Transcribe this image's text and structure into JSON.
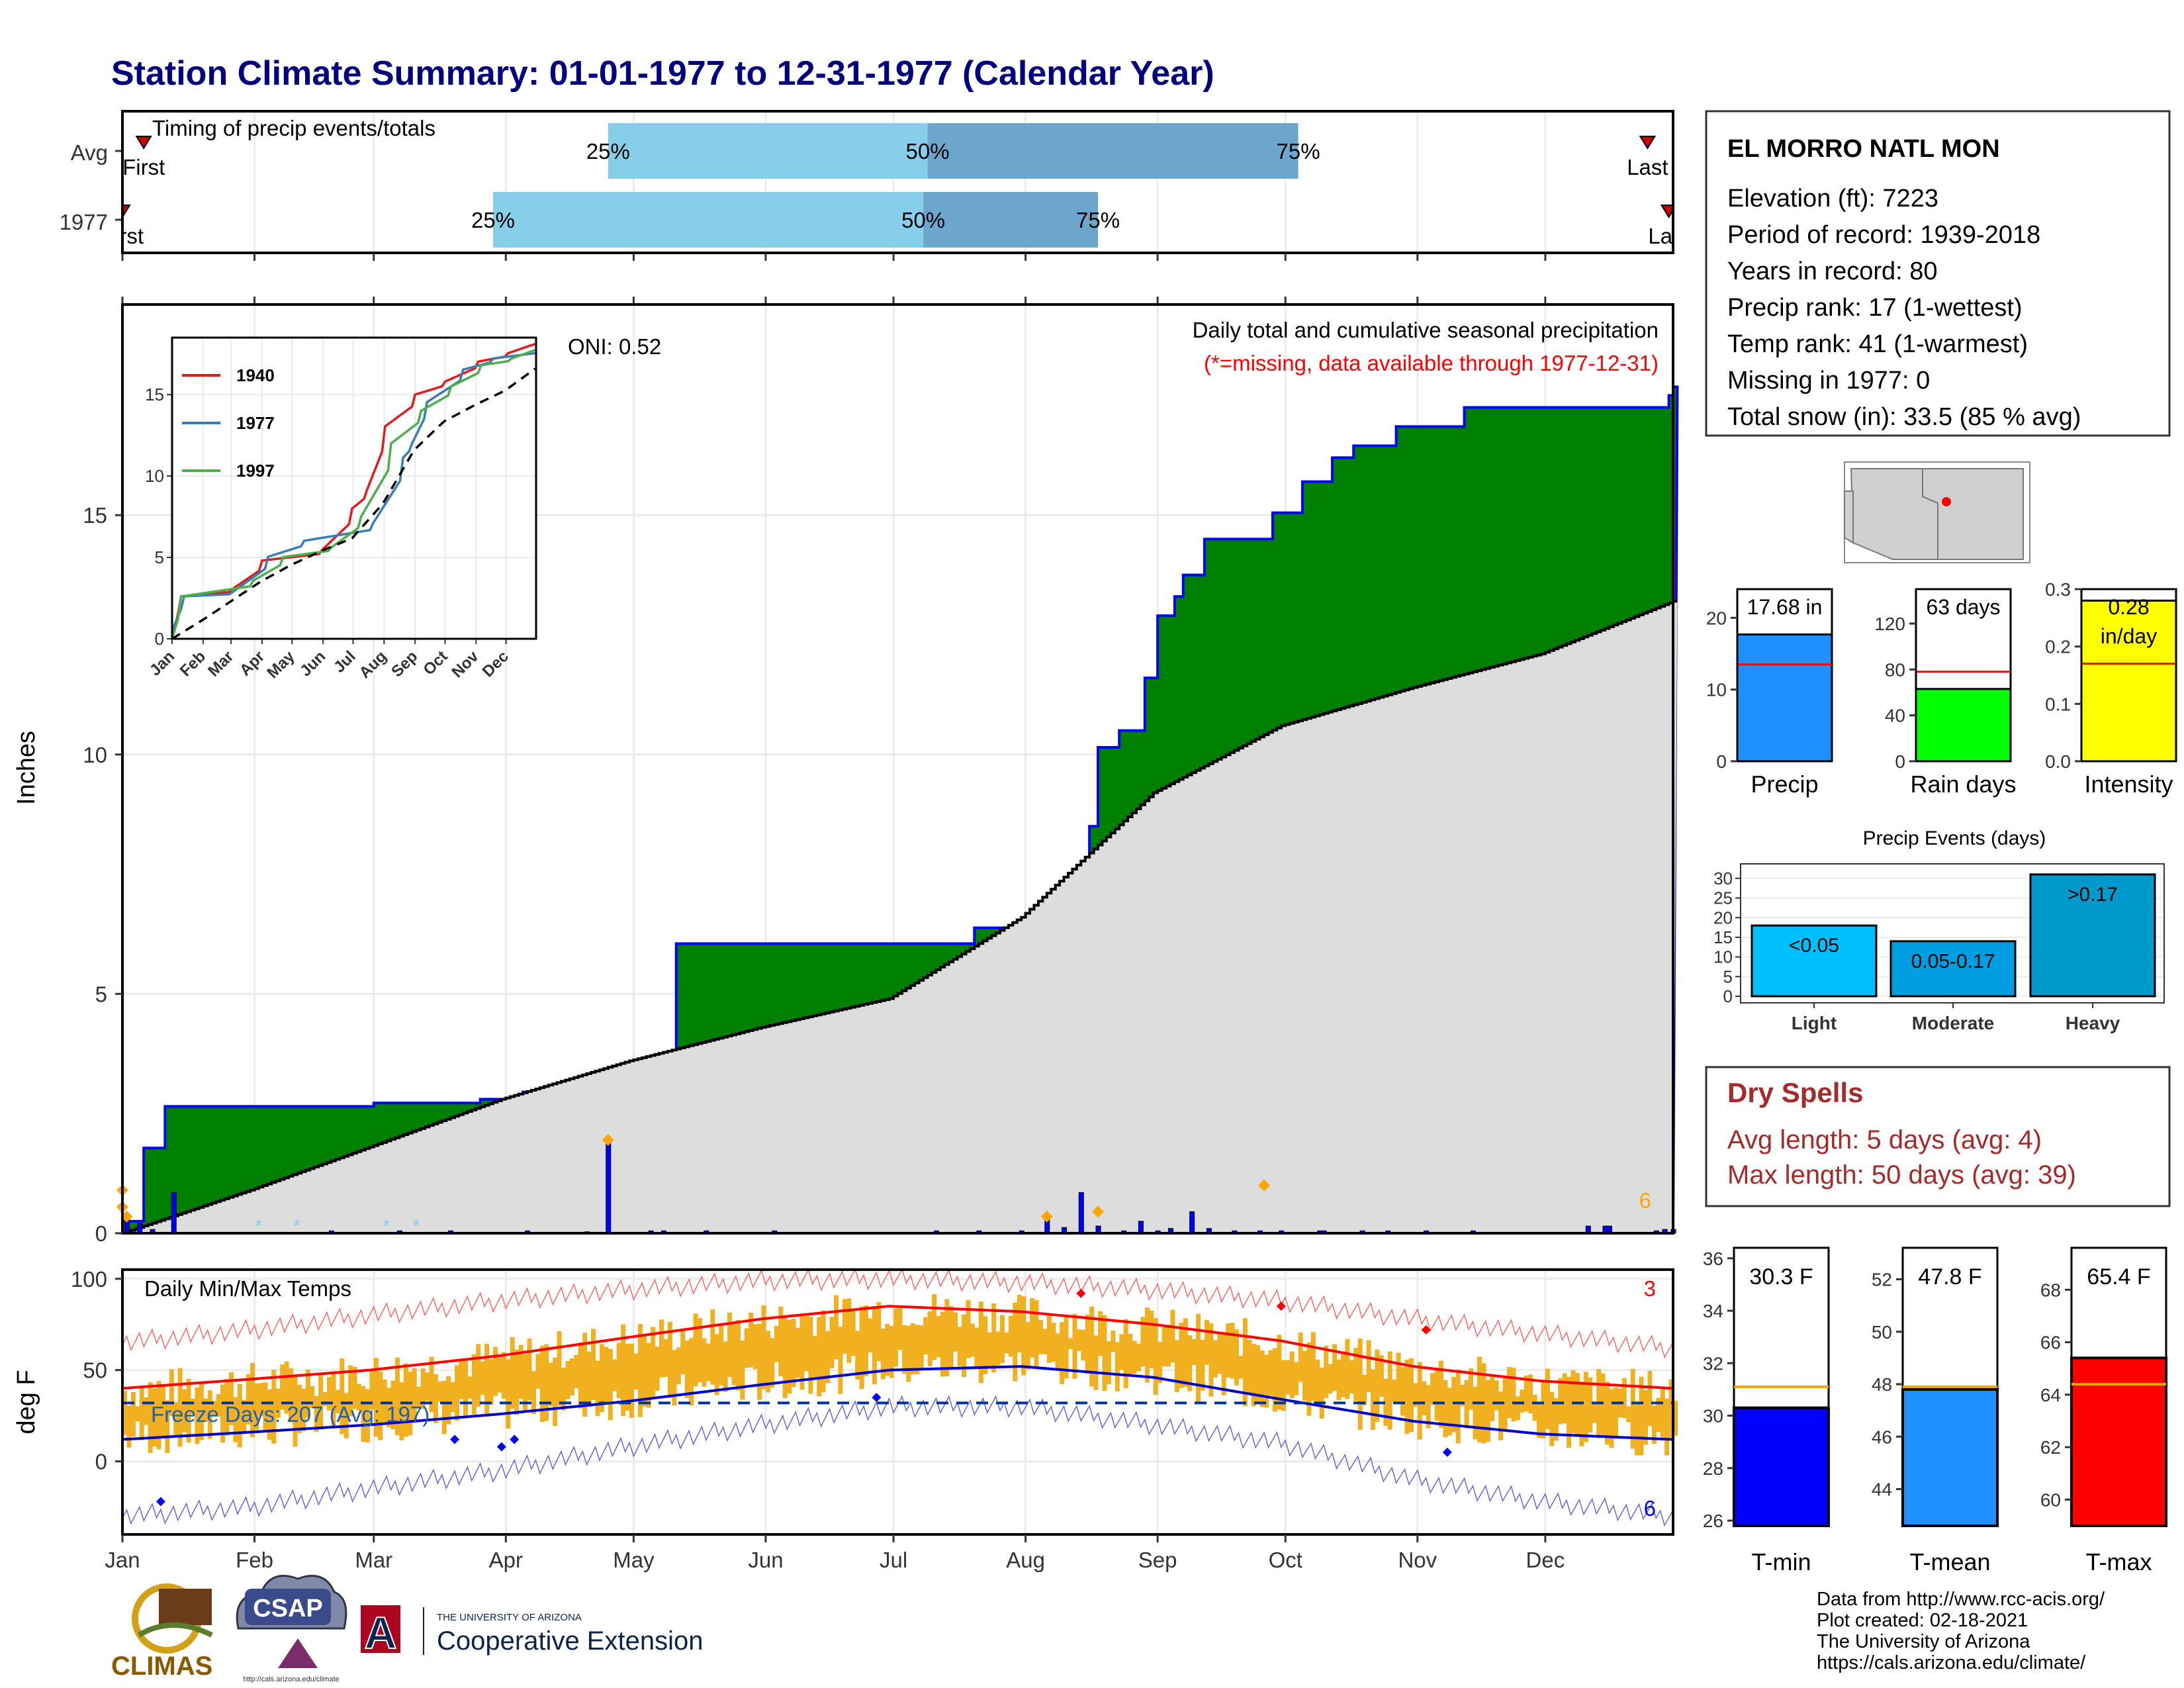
{
  "page": {
    "title": "Station Climate Summary: 01-01-1977 to 12-31-1977 (Calendar Year)"
  },
  "timing": {
    "label": "Timing of precip events/totals",
    "rows": [
      {
        "name": "Avg",
        "first_label": "First",
        "last_label": "Last",
        "first_day": 6,
        "last_day": 359,
        "p25": 115,
        "p50": 190,
        "p75": 277,
        "lbl25": "25%",
        "lbl50": "50%",
        "lbl75": "75%"
      },
      {
        "name": "1977",
        "first_label": "First",
        "last_label": "Last",
        "first_day": 1,
        "last_day": 364,
        "p25": 88,
        "p50": 189,
        "p75": 230,
        "lbl25": "25%",
        "lbl50": "50%",
        "lbl75": "75%"
      }
    ],
    "colors": {
      "light": "#87ceeb",
      "dark": "#6ca6cd",
      "marker": "#cc0000"
    }
  },
  "precip_panel": {
    "ylabel": "Inches",
    "header": "Daily total and cumulative seasonal precipitation",
    "subheader": "(*=missing, data available through 1977-12-31)",
    "oni": "ONI: 0.52",
    "count_label": "6",
    "ylim": [
      0,
      19.4
    ],
    "yticks": [
      0,
      5,
      10,
      15
    ],
    "colors": {
      "cum": "#008000",
      "cum_line": "#0000ff",
      "avg_fill": "#dddddd",
      "avg_line": "#000000",
      "bars": "#0000ff",
      "record": "#ffa500"
    }
  },
  "inset": {
    "ylim": [
      0,
      18.5
    ],
    "yticks": [
      0,
      5,
      10,
      15
    ],
    "months": [
      "Jan",
      "Feb",
      "Mar",
      "Apr",
      "May",
      "Jun",
      "Jul",
      "Aug",
      "Sep",
      "Oct",
      "Nov",
      "Dec"
    ],
    "legend": [
      {
        "name": "1940",
        "color": "#e41a1c"
      },
      {
        "name": "1977",
        "color": "#377eb8"
      },
      {
        "name": "1997",
        "color": "#4daf4a"
      }
    ]
  },
  "temp_panel": {
    "ylabel": "deg F",
    "label": "Daily Min/Max Temps",
    "freeze": "Freeze Days: 207 (Avg: 197)",
    "count_high": "3",
    "count_low": "6",
    "ylim": [
      -40,
      105
    ],
    "yticks": [
      0,
      50,
      100
    ],
    "colors": {
      "bars": "#f0b020",
      "avg_max": "#ff0000",
      "avg_min": "#0000cc",
      "rec_max": "#ff6666",
      "rec_min": "#6666dd",
      "freeze": "#003399"
    }
  },
  "months": [
    "Jan",
    "Feb",
    "Mar",
    "Apr",
    "May",
    "Jun",
    "Jul",
    "Aug",
    "Sep",
    "Oct",
    "Nov",
    "Dec"
  ],
  "station": {
    "name": "EL MORRO NATL MON",
    "lines": [
      "Elevation (ft): 7223",
      "Period of record: 1939-2018",
      "Years in record: 80",
      "Precip rank: 17 (1-wettest)",
      "Temp rank: 41 (1-warmest)",
      "Missing in 1977: 0",
      "Total snow (in): 33.5 (85 % avg)"
    ]
  },
  "mini_bars": [
    {
      "name": "Precip",
      "value": 17.68,
      "value_label": "17.68 in",
      "avg": 13.5,
      "ylim": [
        0,
        24
      ],
      "yticks": [
        0,
        10,
        20
      ],
      "color": "#1e90ff"
    },
    {
      "name": "Rain days",
      "value": 63,
      "value_label": "63 days",
      "avg": 78,
      "ylim": [
        0,
        150
      ],
      "yticks": [
        0,
        40,
        80,
        120
      ],
      "color": "#00ff00"
    },
    {
      "name": "Intensity",
      "value": 0.28,
      "value_label": "0.28",
      "unit_label": "in/day",
      "avg": 0.17,
      "ylim": [
        0,
        0.3
      ],
      "yticks": [
        "0.0",
        "0.1",
        "0.2",
        "0.3"
      ],
      "color": "#ffff00"
    }
  ],
  "events": {
    "title": "Precip Events (days)",
    "ylim": [
      0,
      32
    ],
    "yticks": [
      0,
      5,
      10,
      15,
      20,
      25,
      30
    ],
    "bars": [
      {
        "name": "Light",
        "label": "<0.05",
        "value": 18,
        "color": "#00bfff"
      },
      {
        "name": "Moderate",
        "label": "0.05-0.17",
        "value": 14,
        "color": "#009ee0"
      },
      {
        "name": "Heavy",
        "label": ">0.17",
        "value": 31,
        "color": "#0099cc"
      }
    ]
  },
  "dry_spells": {
    "title": "Dry Spells",
    "avg_length": "Avg length: 5 days (avg: 4)",
    "max_length": "Max length: 50 days (avg: 39)"
  },
  "temp_bars": [
    {
      "name": "T-min",
      "value": 30.3,
      "value_label": "30.3 F",
      "avg": 31.1,
      "ylim": [
        25.8,
        36.4
      ],
      "yticks": [
        26,
        28,
        30,
        32,
        34,
        36
      ],
      "color": "#0000ff"
    },
    {
      "name": "T-mean",
      "value": 47.8,
      "value_label": "47.8 F",
      "avg": 47.9,
      "ylim": [
        42.6,
        53.2
      ],
      "yticks": [
        44,
        46,
        48,
        50,
        52
      ],
      "color": "#1e90ff"
    },
    {
      "name": "T-max",
      "value": 65.4,
      "value_label": "65.4 F",
      "avg": 64.4,
      "ylim": [
        59.0,
        69.6
      ],
      "yticks": [
        60,
        62,
        64,
        66,
        68
      ],
      "color": "#ff0000"
    }
  ],
  "footer": {
    "lines": [
      "Data from http://www.rcc-acis.org/",
      "Plot created: 02-18-2021",
      "The University of Arizona",
      "https://cals.arizona.edu/climate/"
    ],
    "logos": {
      "climas": "CLIMAS",
      "csap": "CSAP",
      "csap_url": "http://cals.arizona.edu/climate",
      "ua_top": "THE UNIVERSITY OF ARIZONA",
      "ua_bottom": "Cooperative Extension",
      "ua_mark": "A"
    }
  },
  "chart_data": [
    {
      "type": "area",
      "title": "Daily total and cumulative seasonal precipitation",
      "ylabel": "Inches",
      "xlabel": "",
      "ylim": [
        0,
        19.4
      ],
      "x_unit": "day of year (1977)",
      "cumulative_1977": {
        "x": [
          1,
          6,
          11,
          60,
          85,
          95,
          105,
          110,
          131,
          201,
          215,
          220,
          225,
          228,
          230,
          235,
          241,
          244,
          248,
          250,
          255,
          271,
          278,
          285,
          290,
          300,
          316,
          355,
          364,
          365
        ],
        "y": [
          0.25,
          1.78,
          2.65,
          2.72,
          2.8,
          2.95,
          3.15,
          3.3,
          6.05,
          6.38,
          6.52,
          6.8,
          7.45,
          8.5,
          10.15,
          10.5,
          11.6,
          12.9,
          13.3,
          13.75,
          14.5,
          15.05,
          15.7,
          16.2,
          16.45,
          16.85,
          17.25,
          17.25,
          17.5,
          17.68
        ]
      },
      "cumulative_avg": {
        "x": [
          1,
          31,
          59,
          90,
          120,
          151,
          181,
          212,
          243,
          273,
          304,
          334,
          365
        ],
        "y": [
          0,
          0.9,
          1.8,
          2.8,
          3.6,
          4.3,
          4.9,
          6.6,
          9.2,
          10.6,
          11.4,
          12.1,
          13.2
        ]
      },
      "daily_precip": {
        "x": [
          2,
          5,
          8,
          13,
          50,
          66,
          78,
          96,
          110,
          115,
          125,
          128,
          138,
          154,
          192,
          202,
          212,
          218,
          222,
          226,
          230,
          236,
          240,
          244,
          247,
          252,
          256,
          262,
          268,
          273,
          282,
          283,
          292,
          298,
          307,
          318,
          345,
          349,
          350,
          361,
          363,
          365
        ],
        "y": [
          0.35,
          0.2,
          0.08,
          0.85,
          0.05,
          0.05,
          0.05,
          0.05,
          0.03,
          1.95,
          0.05,
          0.05,
          0.05,
          0.05,
          0.05,
          0.05,
          0.05,
          0.35,
          0.12,
          0.85,
          0.15,
          0.05,
          0.25,
          0.05,
          0.1,
          0.45,
          0.1,
          0.05,
          0.05,
          0.05,
          0.05,
          0.05,
          0.05,
          0.05,
          0.05,
          0.05,
          0.15,
          0.15,
          0.15,
          0.05,
          0.08,
          0.08
        ]
      },
      "series": [
        {
          "name": "1940"
        },
        {
          "name": "1977"
        },
        {
          "name": "1997"
        }
      ]
    },
    {
      "type": "line",
      "title": "Daily Min/Max Temps",
      "ylabel": "deg F",
      "ylim": [
        -40,
        105
      ],
      "x_unit": "day of year (1977)",
      "avg_max": {
        "x": [
          1,
          31,
          59,
          90,
          120,
          151,
          181,
          212,
          243,
          273,
          304,
          334,
          365
        ],
        "y": [
          40,
          45,
          50,
          58,
          68,
          78,
          85,
          82,
          75,
          66,
          52,
          44,
          40
        ]
      },
      "avg_min": {
        "x": [
          1,
          31,
          59,
          90,
          120,
          151,
          181,
          212,
          243,
          273,
          304,
          334,
          365
        ],
        "y": [
          12,
          16,
          20,
          26,
          33,
          42,
          50,
          52,
          46,
          34,
          22,
          15,
          12
        ]
      },
      "record_max": {
        "x": [
          1,
          31,
          59,
          90,
          120,
          151,
          181,
          212,
          243,
          273,
          304,
          334,
          365
        ],
        "y": [
          65,
          72,
          80,
          88,
          94,
          99,
          100,
          98,
          94,
          88,
          78,
          70,
          62
        ]
      },
      "record_min": {
        "x": [
          1,
          31,
          59,
          90,
          120,
          151,
          181,
          212,
          243,
          273,
          304,
          334,
          365
        ],
        "y": [
          -30,
          -25,
          -15,
          -5,
          8,
          20,
          30,
          30,
          20,
          10,
          -10,
          -22,
          -30
        ]
      },
      "freeze_threshold": 32
    }
  ]
}
